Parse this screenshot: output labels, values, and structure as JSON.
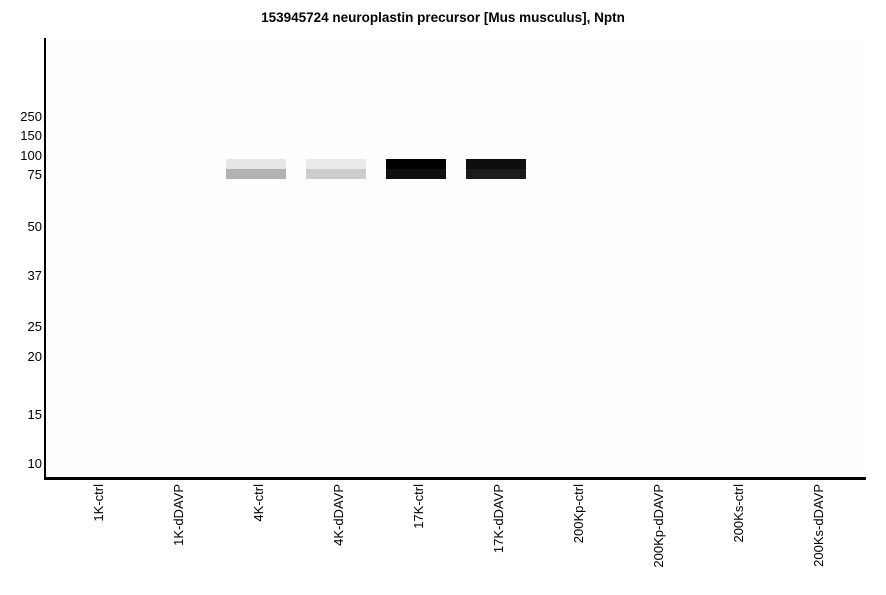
{
  "colors": {
    "background": "#ffffff",
    "plot_background": "#fefefe",
    "axis": "#000000",
    "text": "#000000"
  },
  "chart_data": {
    "type": "heatmap",
    "subtype": "simulated-western-blot",
    "title": "153945724 neuroplastin precursor [Mus musculus], Nptn",
    "xlabel": "",
    "ylabel": "",
    "y_axis_unit": "kDa molecular weight markers",
    "y_ticks": [
      "250",
      "150",
      "100",
      "75",
      "50",
      "37",
      "25",
      "20",
      "15",
      "10"
    ],
    "categories": [
      "1K-ctrl",
      "1K-dDAVP",
      "4K-ctrl",
      "4K-dDAVP",
      "17K-ctrl",
      "17K-dDAVP",
      "200Kp-ctrl",
      "200Kp-dDAVP",
      "200Ks-ctrl",
      "200Ks-dDAVP"
    ],
    "lanes": [
      {
        "label": "1K-ctrl",
        "band": null
      },
      {
        "label": "1K-dDAVP",
        "band": null
      },
      {
        "label": "4K-ctrl",
        "band": {
          "kda_range": [
            72,
            97
          ],
          "intensity": "faint",
          "color_top": "#e6e6e6",
          "color_bottom": "#b2b2b2"
        }
      },
      {
        "label": "4K-dDAVP",
        "band": {
          "kda_range": [
            72,
            97
          ],
          "intensity": "faint",
          "color_top": "#eaeaea",
          "color_bottom": "#cccccc"
        }
      },
      {
        "label": "17K-ctrl",
        "band": {
          "kda_range": [
            72,
            97
          ],
          "intensity": "strong",
          "color_top": "#000000",
          "color_bottom": "#0f0f0f"
        }
      },
      {
        "label": "17K-dDAVP",
        "band": {
          "kda_range": [
            72,
            97
          ],
          "intensity": "strong",
          "color_top": "#0e0e0e",
          "color_bottom": "#1b1b1b"
        }
      },
      {
        "label": "200Kp-ctrl",
        "band": null
      },
      {
        "label": "200Kp-dDAVP",
        "band": null
      },
      {
        "label": "200Ks-ctrl",
        "band": null
      },
      {
        "label": "200Ks-dDAVP",
        "band": null
      }
    ],
    "grid": false,
    "legend": false,
    "axis_ranges": {
      "y_top_kda": 250,
      "y_bottom_kda": 10
    }
  }
}
